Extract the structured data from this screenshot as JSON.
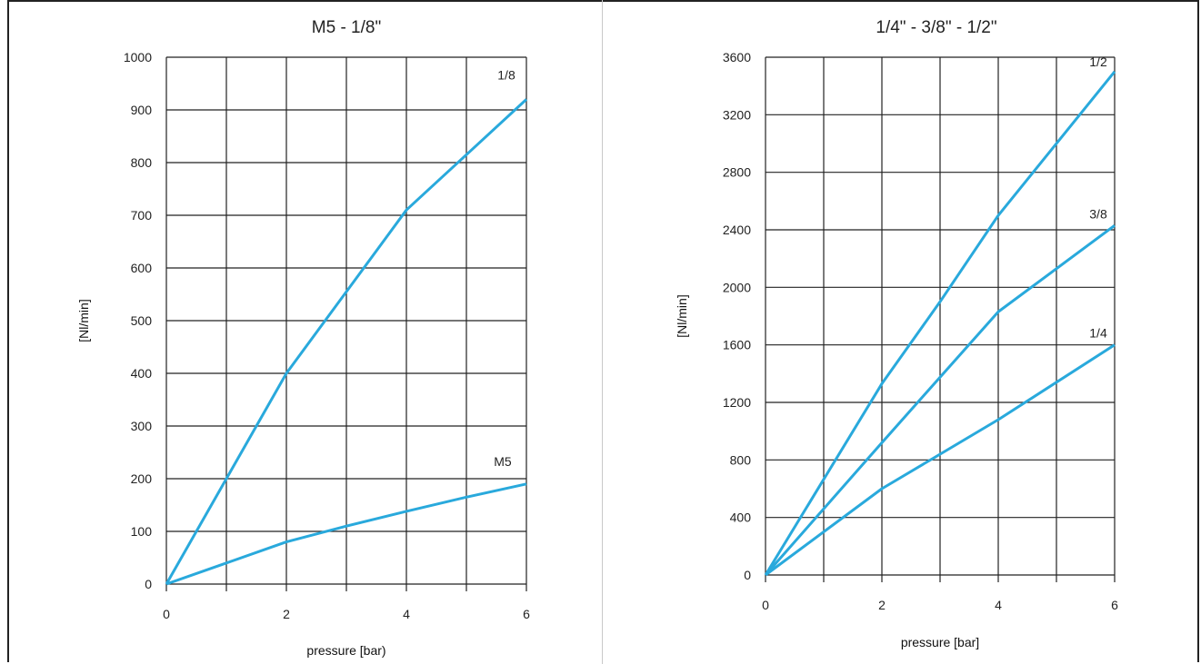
{
  "colors": {
    "series": "#29a9dc",
    "grid": "#222222"
  },
  "chart_data": [
    {
      "type": "line",
      "title": "M5 - 1/8\"",
      "xlabel": "pressure [bar)",
      "ylabel": "[Nl/min]",
      "xlim": [
        0,
        6
      ],
      "ylim": [
        0,
        1000
      ],
      "xticks": [
        0,
        2,
        4,
        6
      ],
      "xtick_labels": [
        "0",
        "2",
        "4",
        "6"
      ],
      "yticks": [
        0,
        100,
        200,
        300,
        400,
        500,
        600,
        700,
        800,
        900,
        1000
      ],
      "ytick_labels": [
        "0",
        "100",
        "200",
        "300",
        "400",
        "500",
        "600",
        "700",
        "800",
        "900",
        "1000"
      ],
      "grid": true,
      "series": [
        {
          "name": "1/8",
          "x": [
            0,
            1,
            2,
            3,
            4,
            5,
            6
          ],
          "values": [
            0,
            200,
            400,
            555,
            710,
            815,
            920
          ]
        },
        {
          "name": "M5",
          "x": [
            0,
            1,
            2,
            3,
            4,
            5,
            6
          ],
          "values": [
            0,
            40,
            80,
            110,
            138,
            165,
            190
          ]
        }
      ]
    },
    {
      "type": "line",
      "title": "1/4\" - 3/8\" - 1/2\"",
      "xlabel": "pressure [bar]",
      "ylabel": "[Nl/min]",
      "xlim": [
        0,
        6
      ],
      "ylim": [
        0,
        3600
      ],
      "xticks": [
        0,
        2,
        4,
        6
      ],
      "xtick_labels": [
        "0",
        "2",
        "4",
        "6"
      ],
      "yticks": [
        0,
        400,
        800,
        1200,
        1600,
        2000,
        2400,
        2800,
        3200,
        3600
      ],
      "ytick_labels": [
        "0",
        "400",
        "800",
        "1200",
        "1600",
        "2000",
        "2400",
        "2800",
        "3200",
        "3600"
      ],
      "grid": true,
      "series": [
        {
          "name": "1/2",
          "x": [
            0,
            2,
            3,
            4,
            6
          ],
          "values": [
            0,
            1330,
            1900,
            2500,
            3500
          ]
        },
        {
          "name": "3/8",
          "x": [
            0,
            2,
            4,
            6
          ],
          "values": [
            0,
            920,
            1830,
            2430
          ]
        },
        {
          "name": "1/4",
          "x": [
            0,
            2,
            4,
            6
          ],
          "values": [
            0,
            600,
            1080,
            1600
          ]
        }
      ]
    }
  ]
}
